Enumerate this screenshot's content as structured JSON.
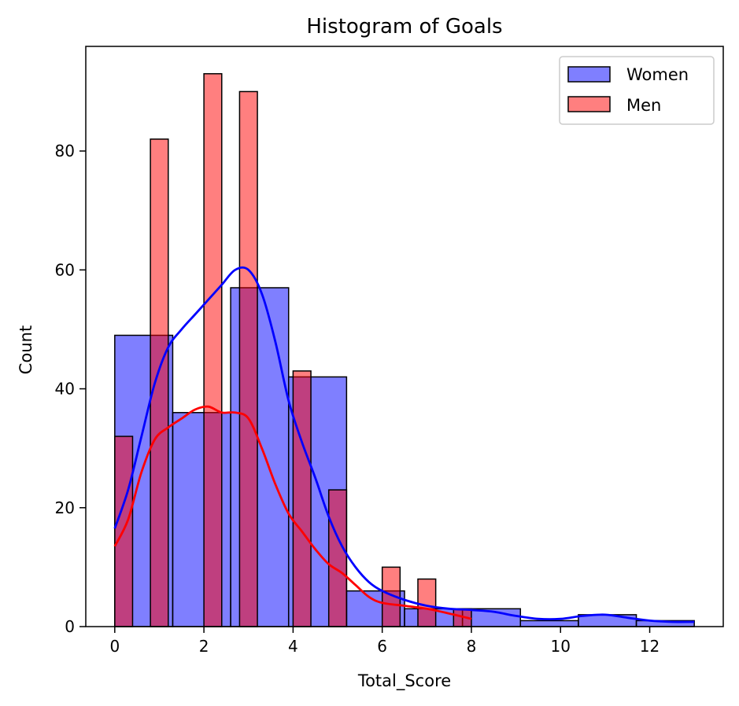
{
  "chart_data": {
    "type": "bar",
    "title": "Histogram of Goals",
    "xlabel": "Total_Score",
    "ylabel": "Count",
    "xlim": [
      -0.65,
      13.65
    ],
    "ylim": [
      0,
      97.6
    ],
    "xticks": [
      0,
      2,
      4,
      6,
      8,
      10,
      12
    ],
    "yticks": [
      0,
      20,
      40,
      60,
      80
    ],
    "legend": {
      "placement": "upper-right",
      "entries": [
        "Women",
        "Men"
      ]
    },
    "series": [
      {
        "name": "Women",
        "color": "#0000ff",
        "bins": [
          {
            "x0": 0.0,
            "x1": 1.3,
            "count": 49
          },
          {
            "x0": 1.3,
            "x1": 2.6,
            "count": 36
          },
          {
            "x0": 2.6,
            "x1": 3.9,
            "count": 57
          },
          {
            "x0": 3.9,
            "x1": 5.2,
            "count": 42
          },
          {
            "x0": 5.2,
            "x1": 6.5,
            "count": 6
          },
          {
            "x0": 6.5,
            "x1": 7.8,
            "count": 3
          },
          {
            "x0": 7.8,
            "x1": 9.1,
            "count": 3
          },
          {
            "x0": 9.1,
            "x1": 10.4,
            "count": 1
          },
          {
            "x0": 10.4,
            "x1": 11.7,
            "count": 2
          },
          {
            "x0": 11.7,
            "x1": 13.0,
            "count": 1
          }
        ],
        "kde": [
          [
            0,
            16.5
          ],
          [
            0.3,
            23
          ],
          [
            0.6,
            32
          ],
          [
            0.9,
            41
          ],
          [
            1.2,
            47
          ],
          [
            1.5,
            50
          ],
          [
            1.8,
            52.5
          ],
          [
            2.1,
            55
          ],
          [
            2.4,
            57.5
          ],
          [
            2.7,
            60
          ],
          [
            3.0,
            60
          ],
          [
            3.3,
            56
          ],
          [
            3.6,
            48
          ],
          [
            3.9,
            38
          ],
          [
            4.2,
            31
          ],
          [
            4.5,
            25
          ],
          [
            4.8,
            18.5
          ],
          [
            5.1,
            13.5
          ],
          [
            5.4,
            10
          ],
          [
            5.7,
            7.5
          ],
          [
            6.0,
            6
          ],
          [
            6.5,
            4.5
          ],
          [
            7.0,
            3.5
          ],
          [
            7.5,
            3
          ],
          [
            8.0,
            2.8
          ],
          [
            8.5,
            2.5
          ],
          [
            9.0,
            1.8
          ],
          [
            9.5,
            1.3
          ],
          [
            10.0,
            1.3
          ],
          [
            10.5,
            1.8
          ],
          [
            11.0,
            2
          ],
          [
            11.5,
            1.5
          ],
          [
            12.0,
            1
          ],
          [
            12.5,
            0.8
          ],
          [
            13.0,
            0.8
          ]
        ]
      },
      {
        "name": "Men",
        "color": "#ff0000",
        "bins": [
          {
            "x0": 0.0,
            "x1": 0.4,
            "count": 32
          },
          {
            "x0": 0.8,
            "x1": 1.2,
            "count": 82
          },
          {
            "x0": 2.0,
            "x1": 2.4,
            "count": 93
          },
          {
            "x0": 2.8,
            "x1": 3.2,
            "count": 90
          },
          {
            "x0": 4.0,
            "x1": 4.4,
            "count": 43
          },
          {
            "x0": 4.8,
            "x1": 5.2,
            "count": 23
          },
          {
            "x0": 6.0,
            "x1": 6.4,
            "count": 10
          },
          {
            "x0": 6.8,
            "x1": 7.2,
            "count": 8
          },
          {
            "x0": 7.6,
            "x1": 8.0,
            "count": 3
          }
        ],
        "kde": [
          [
            0,
            13.5
          ],
          [
            0.3,
            18
          ],
          [
            0.6,
            26
          ],
          [
            0.9,
            31.5
          ],
          [
            1.2,
            33.5
          ],
          [
            1.5,
            35
          ],
          [
            1.8,
            36.5
          ],
          [
            2.1,
            37
          ],
          [
            2.4,
            36
          ],
          [
            2.7,
            36
          ],
          [
            3.0,
            35
          ],
          [
            3.3,
            30
          ],
          [
            3.6,
            24
          ],
          [
            3.9,
            19
          ],
          [
            4.2,
            16
          ],
          [
            4.5,
            13
          ],
          [
            4.8,
            10.5
          ],
          [
            5.1,
            9
          ],
          [
            5.4,
            7
          ],
          [
            5.7,
            5
          ],
          [
            6.0,
            4
          ],
          [
            6.5,
            3.5
          ],
          [
            7.0,
            3
          ],
          [
            7.5,
            2.2
          ],
          [
            8.0,
            1.3
          ]
        ]
      }
    ]
  }
}
